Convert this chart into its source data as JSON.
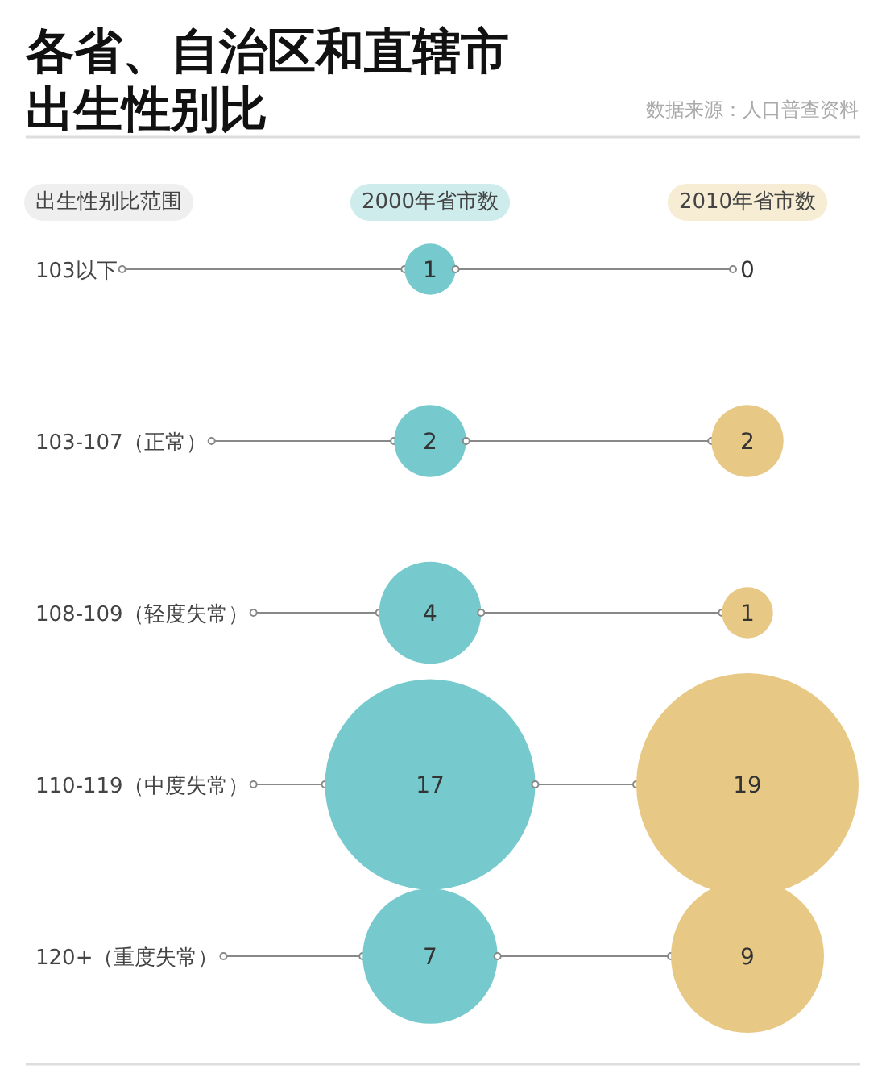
{
  "chart_data": {
    "type": "other",
    "title": "各省、自治区和直辖市出生性别比",
    "annotations": [
      "数据来源：人口普查资料"
    ],
    "ylabel": "出生性别比范围",
    "categories": [
      "103以下",
      "103-107（正常）",
      "108-109（轻度失常）",
      "110-119（中度失常）",
      "120+（重度失常）"
    ],
    "series": [
      {
        "name": "2000年省市数",
        "color": "#76c9cc",
        "values": [
          1,
          2,
          4,
          17,
          7
        ]
      },
      {
        "name": "2010年省市数",
        "color": "#e8c885",
        "values": [
          0,
          2,
          1,
          19,
          9
        ]
      }
    ],
    "data_labels": true
  }
}
